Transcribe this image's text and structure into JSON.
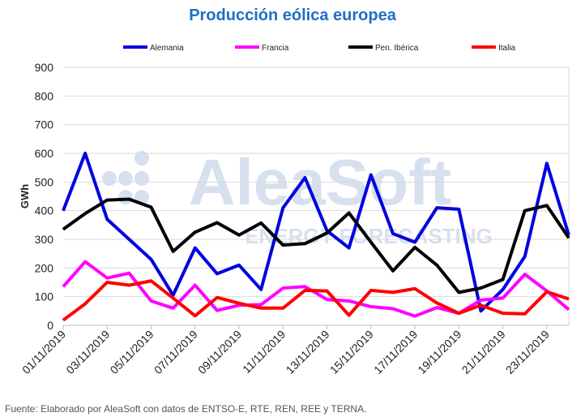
{
  "chart_data": {
    "type": "line",
    "title": "Producción eólica europea",
    "ylabel": "GWh",
    "xlabel": "",
    "ylim": [
      0,
      900
    ],
    "yticks": [
      0,
      100,
      200,
      300,
      400,
      500,
      600,
      700,
      800,
      900
    ],
    "grid": true,
    "legend": "top",
    "x": [
      "01/11/2019",
      "02/11/2019",
      "03/11/2019",
      "04/11/2019",
      "05/11/2019",
      "06/11/2019",
      "07/11/2019",
      "08/11/2019",
      "09/11/2019",
      "10/11/2019",
      "11/11/2019",
      "12/11/2019",
      "13/11/2019",
      "14/11/2019",
      "15/11/2019",
      "16/11/2019",
      "17/11/2019",
      "18/11/2019",
      "19/11/2019",
      "20/11/2019",
      "21/11/2019",
      "22/11/2019",
      "23/11/2019",
      "24/11/2019"
    ],
    "xtick_labels": [
      "01/11/2019",
      "03/11/2019",
      "05/11/2019",
      "07/11/2019",
      "09/11/2019",
      "11/11/2019",
      "13/11/2019",
      "15/11/2019",
      "17/11/2019",
      "19/11/2019",
      "21/11/2019",
      "23/11/2019"
    ],
    "series": [
      {
        "name": "Alemania",
        "color": "#0000e0",
        "values": [
          400,
          600,
          370,
          300,
          230,
          105,
          270,
          180,
          210,
          125,
          410,
          515,
          330,
          270,
          525,
          320,
          290,
          410,
          405,
          50,
          125,
          240,
          565,
          315
        ]
      },
      {
        "name": "Francia",
        "color": "#ff00ff",
        "values": [
          135,
          222,
          165,
          182,
          85,
          60,
          140,
          52,
          70,
          72,
          130,
          135,
          90,
          85,
          65,
          58,
          32,
          62,
          42,
          88,
          95,
          178,
          120,
          55
        ]
      },
      {
        "name": "Pen. Ibérica",
        "color": "#000000",
        "values": [
          335,
          390,
          437,
          440,
          412,
          258,
          325,
          358,
          315,
          357,
          280,
          285,
          322,
          392,
          290,
          190,
          272,
          210,
          115,
          130,
          160,
          400,
          418,
          305
        ]
      },
      {
        "name": "Italia",
        "color": "#ff0000",
        "values": [
          18,
          75,
          150,
          140,
          155,
          95,
          33,
          97,
          77,
          60,
          60,
          122,
          120,
          35,
          122,
          115,
          128,
          78,
          42,
          70,
          42,
          40,
          117,
          92
        ]
      }
    ]
  },
  "watermark": {
    "brand": "AleaSoft",
    "sub": "ENERGY FORECASTING"
  },
  "source": "Fuente: Elaborado por AleaSoft con datos de ENTSO-E, RTE, REN, REE y TERNA."
}
